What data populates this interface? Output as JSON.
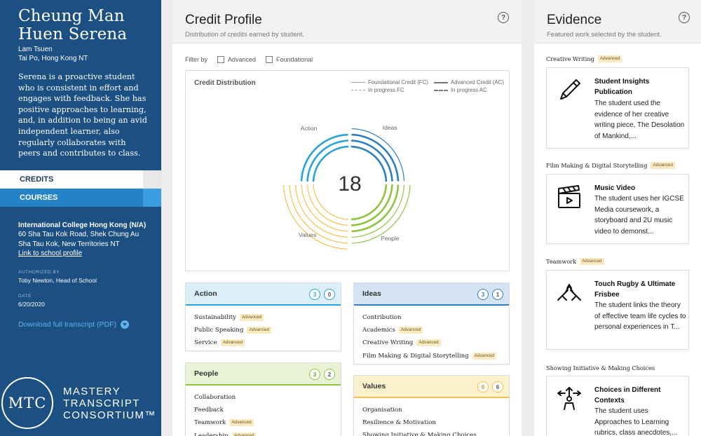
{
  "student": {
    "name_line1": "Cheung Man",
    "name_line2": "Huen Serena",
    "location_line1": "Lam Tsuen",
    "location_line2": "Tai Po, Hong Kong NT",
    "bio": "Serena is a proactive student who is consistent in effort and engages with feedback. She has positive approaches to learning, and, in addition to being an avid independent learner, also regularly collaborates with peers and contributes to class."
  },
  "nav": {
    "credits": "CREDITS",
    "courses": "COURSES"
  },
  "school": {
    "name": "International College Hong Kong (N/A)",
    "address1": "60 Sha Tau Kok Road, Shek Chung Au",
    "address2": "Sha Tau Kok, New Territories NT",
    "profile_link": "Link to school profile",
    "authorized_label": "AUTHORIZED BY",
    "authorized_by": "Toby Newton, Head of School",
    "date_label": "DATE",
    "date": "6/20/2020",
    "download": "Download full transcript (PDF)"
  },
  "logo": {
    "abbr": "MTC",
    "line1": "MASTERY",
    "line2": "TRANSCRIPT",
    "line3": "CONSORTIUM™"
  },
  "profile": {
    "title": "Credit Profile",
    "subtitle": "Distribution of credits earned by student.",
    "help": "?",
    "filter_label": "Filter by",
    "filter_advanced": "Advanced",
    "filter_foundational": "Foundational"
  },
  "chart_data": {
    "type": "radial-arcs",
    "title": "Credit Distribution",
    "center_value": "18",
    "legend": {
      "foundational": "Foundational Credit (FC)",
      "advanced": "Advanced Credit (AC)",
      "in_progress_fc": "In progress FC",
      "in_progress_ac": "In progress AC"
    },
    "quadrants": [
      {
        "name": "Action",
        "position": "top-left",
        "color": "#29a3dc",
        "advanced": 3,
        "foundational": 0
      },
      {
        "name": "Ideas",
        "position": "top-right",
        "color": "#2d7fc1",
        "advanced": 3,
        "foundational": 1
      },
      {
        "name": "People",
        "position": "bottom-right",
        "color": "#8cc63f",
        "advanced": 3,
        "foundational": 2
      },
      {
        "name": "Values",
        "position": "bottom-left",
        "color": "#f5c14c",
        "advanced": 0,
        "foundational": 6
      }
    ]
  },
  "colors": {
    "action": "#29a3dc",
    "ideas": "#2d7fc1",
    "people": "#8cc63f",
    "values": "#f5c14c",
    "action_bg": "#dbeefa",
    "ideas_bg": "#d4e4f3",
    "people_bg": "#e8f3d5",
    "values_bg": "#fdf0cc"
  },
  "cards": {
    "action": {
      "title": "Action",
      "advanced_count": "3",
      "foundational_count": "0",
      "items": [
        {
          "name": "Sustainability",
          "tag": "Advanced"
        },
        {
          "name": "Public Speaking",
          "tag": "Advanced"
        },
        {
          "name": "Service",
          "tag": "Advanced"
        }
      ]
    },
    "ideas": {
      "title": "Ideas",
      "advanced_count": "3",
      "foundational_count": "1",
      "items": [
        {
          "name": "Contribution",
          "tag": ""
        },
        {
          "name": "Academics",
          "tag": "Advanced"
        },
        {
          "name": "Creative Writing",
          "tag": "Advanced"
        },
        {
          "name": "Film Making & Digital Storytelling",
          "tag": "Advanced"
        }
      ]
    },
    "people": {
      "title": "People",
      "advanced_count": "3",
      "foundational_count": "2",
      "items": [
        {
          "name": "Collaboration",
          "tag": ""
        },
        {
          "name": "Feedback",
          "tag": ""
        },
        {
          "name": "Teamwork",
          "tag": "Advanced"
        },
        {
          "name": "Leadership",
          "tag": "Advanced"
        }
      ]
    },
    "values": {
      "title": "Values",
      "advanced_count": "0",
      "foundational_count": "6",
      "items": [
        {
          "name": "Organisation",
          "tag": ""
        },
        {
          "name": "Resilience & Motivation",
          "tag": ""
        },
        {
          "name": "Showing Initiative & Making Choices",
          "tag": ""
        }
      ]
    }
  },
  "evidence": {
    "title": "Evidence",
    "subtitle": "Featured work selected by the student.",
    "help": "?",
    "items": [
      {
        "category": "Creative Writing",
        "tag": "Advanced",
        "icon": "pencil-icon",
        "title": "Student Insights Publication",
        "desc": "The student used the evidence of her creative writing piece, The Desolation of Mankind,..."
      },
      {
        "category": "Film Making & Digital Storytelling",
        "tag": "Advanced",
        "icon": "clapperboard-icon",
        "title": "Music Video",
        "desc": "The student uses her IGCSE Media coursework, a storyboard and 2U music video to demonst..."
      },
      {
        "category": "Teamwork",
        "tag": "Advanced",
        "icon": "handshake-icon",
        "title": "Touch Rugby & Ultimate Frisbee",
        "desc": "The student links the theory of effective team life cycles to personal experiences in T..."
      },
      {
        "category": "Showing Initiative & Making Choices",
        "tag": "",
        "icon": "directions-icon",
        "title": "Choices in Different Contexts",
        "desc": "The student uses Approaches to Learning rubrics, class anecdotes,..."
      }
    ]
  }
}
